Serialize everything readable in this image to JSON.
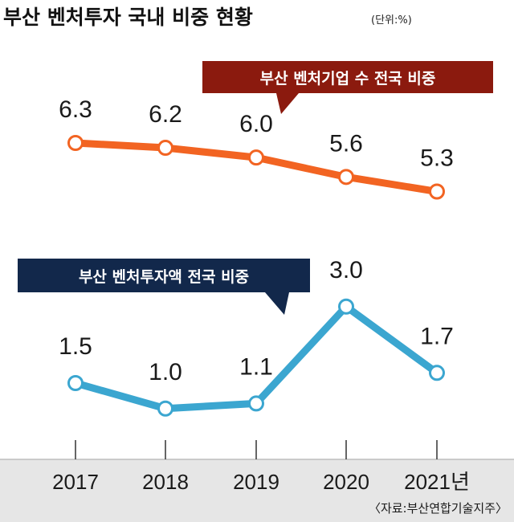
{
  "chart_data": {
    "type": "line",
    "title": "부산 벤처투자 국내 비중 현황",
    "unit": "(단위:%)",
    "categories": [
      "2017",
      "2018",
      "2019",
      "2020",
      "2021년"
    ],
    "series": [
      {
        "name": "부산 벤처기업 수 전국 비중",
        "values": [
          6.3,
          6.2,
          6.0,
          5.6,
          5.3
        ],
        "labels": [
          "6.3",
          "6.2",
          "6.0",
          "5.6",
          "5.3"
        ],
        "color": "#f26422",
        "callout_color": "#8b1a0e"
      },
      {
        "name": "부산 벤처투자액 전국 비중",
        "values": [
          1.5,
          1.0,
          1.1,
          3.0,
          1.7
        ],
        "labels": [
          "1.5",
          "1.0",
          "1.1",
          "3.0",
          "1.7"
        ],
        "color": "#3ba6d0",
        "callout_color": "#12284b"
      }
    ],
    "source": "〈자료:부산연합기술지주〉"
  },
  "colors": {
    "axis_band": "#e6e6e6",
    "marker_fill": "#ffffff"
  }
}
